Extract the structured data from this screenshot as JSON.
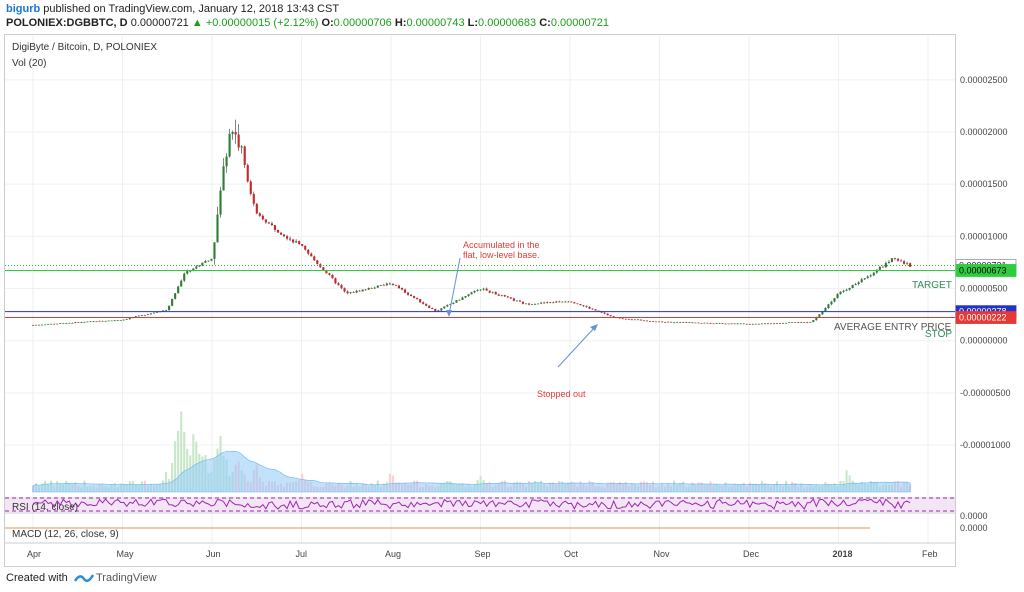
{
  "header": {
    "user": "bigurb",
    "published": "published on TradingView.com, January 12, 2018 13:43 CST",
    "symbol": "POLONIEX:DGBBTC, D",
    "last": "0.00000721",
    "change": "+0.00000015 (+2.12%)",
    "o_label": "O:",
    "o": "0.00000706",
    "h_label": "H:",
    "h": "0.00000743",
    "l_label": "L:",
    "l": "0.00000683",
    "c_label": "C:",
    "c": "0.00000721"
  },
  "legend": {
    "main": "DigiByte / Bitcoin, D, POLONIEX",
    "vol": "Vol (20)"
  },
  "indicators": {
    "rsi": "RSI (14, close)",
    "macd": "MACD (12, 26, close, 9)"
  },
  "annotations": {
    "accum_line1": "Accumulated in the",
    "accum_line2": "flat, low-level base.",
    "stopped": "Stopped out",
    "target": "TARGET",
    "avg_entry": "AVERAGE ENTRY PRICE",
    "stop": "STOP"
  },
  "price_tags": {
    "last": "0.00000721",
    "target": "0.00000673",
    "entry": "0.00000278",
    "stop": "0.00000222"
  },
  "colors": {
    "up": "#26a69a",
    "down": "#ef5350",
    "candle_body_up": "#2e7d32",
    "candle_body_down": "#c62828",
    "target": "#2ecc40",
    "entry": "#2233cc",
    "stop": "#e53935",
    "rsi": "#9c27b0",
    "volume_ma": "#90caf9"
  },
  "chart_data": {
    "type": "candlestick",
    "title": "DigiByte / Bitcoin, D, POLONIEX",
    "x_ticks": [
      "Apr",
      "May",
      "Jun",
      "Jul",
      "Aug",
      "Sep",
      "Oct",
      "Nov",
      "Dec",
      "2018",
      "Feb"
    ],
    "y_ticks": [
      "0.00002500",
      "0.00002000",
      "0.00001500",
      "0.00001000",
      "0.00000500",
      "0.00000000",
      "-0.00000500",
      "-0.00001000"
    ],
    "ylim": [
      -1.45e-05,
      2.92e-05
    ],
    "rsi_ticks": [
      "0.0000"
    ],
    "macd_ticks": [
      "0.0000"
    ],
    "levels": {
      "target": 6.73e-06,
      "entry": 2.78e-06,
      "stop": 2.22e-06,
      "last": 7.21e-06
    },
    "price_path": [
      {
        "month": 0,
        "close": 1.5e-06
      },
      {
        "month": 1,
        "close": 2e-06
      },
      {
        "month": 1.5,
        "close": 3e-06
      },
      {
        "month": 1.7,
        "close": 6.5e-06
      },
      {
        "month": 2.0,
        "close": 8e-06
      },
      {
        "month": 2.2,
        "close": 2.1e-05
      },
      {
        "month": 2.3,
        "close": 1.9e-05
      },
      {
        "month": 2.5,
        "close": 1.2e-05
      },
      {
        "month": 3.0,
        "close": 9e-06
      },
      {
        "month": 3.5,
        "close": 4.5e-06
      },
      {
        "month": 4.0,
        "close": 5.5e-06
      },
      {
        "month": 4.5,
        "close": 2.8e-06
      },
      {
        "month": 5.0,
        "close": 5e-06
      },
      {
        "month": 5.5,
        "close": 3.5e-06
      },
      {
        "month": 6.0,
        "close": 3.8e-06
      },
      {
        "month": 6.5,
        "close": 2.2e-06
      },
      {
        "month": 7.0,
        "close": 1.8e-06
      },
      {
        "month": 8.0,
        "close": 1.6e-06
      },
      {
        "month": 8.7,
        "close": 1.8e-06
      },
      {
        "month": 9.0,
        "close": 4.5e-06
      },
      {
        "month": 9.3,
        "close": 6e-06
      },
      {
        "month": 9.6,
        "close": 7.8e-06
      },
      {
        "month": 9.8,
        "close": 7.2e-06
      }
    ],
    "volume_bars": [
      {
        "month": 0.4,
        "v": 0.1
      },
      {
        "month": 1.5,
        "v": 0.2
      },
      {
        "month": 1.65,
        "v": 1.0
      },
      {
        "month": 1.8,
        "v": 0.55
      },
      {
        "month": 1.9,
        "v": 0.45
      },
      {
        "month": 2.1,
        "v": 0.6
      },
      {
        "month": 2.3,
        "v": 0.35
      },
      {
        "month": 2.5,
        "v": 0.25
      },
      {
        "month": 3.0,
        "v": 0.18
      },
      {
        "month": 4.0,
        "v": 0.2
      },
      {
        "month": 5.0,
        "v": 0.15
      },
      {
        "month": 9.1,
        "v": 0.22
      }
    ]
  },
  "footer": {
    "created": "Created with",
    "brand": "TradingView"
  }
}
